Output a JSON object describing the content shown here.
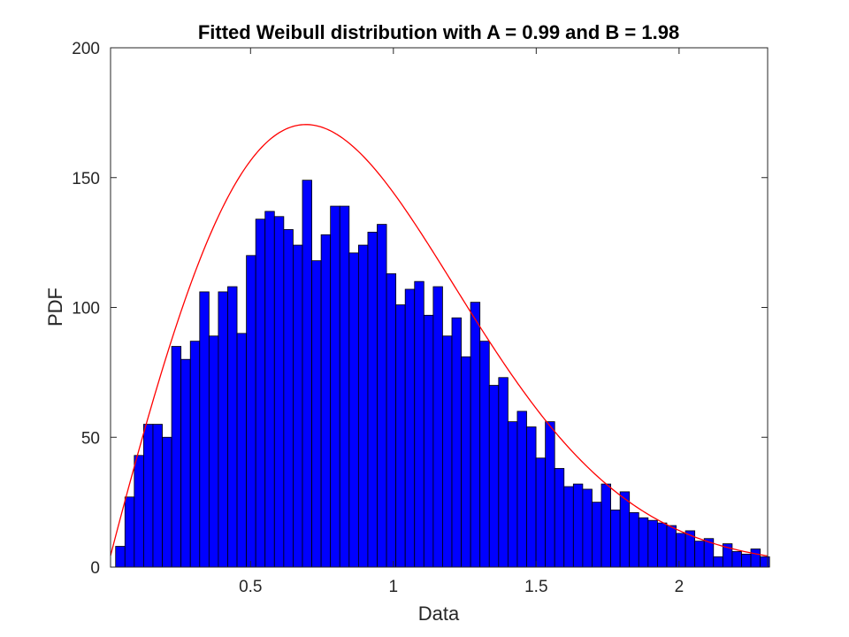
{
  "chart_data": {
    "type": "bar",
    "title": "Fitted Weibull distribution with A = 0.99 and B = 1.98",
    "xlabel": "Data",
    "ylabel": "PDF",
    "xlim": [
      0.01,
      2.31
    ],
    "ylim": [
      0,
      200
    ],
    "xticks": [
      {
        "value": 0.5,
        "label": "0.5"
      },
      {
        "value": 1,
        "label": "1"
      },
      {
        "value": 1.5,
        "label": "1.5"
      },
      {
        "value": 2,
        "label": "2"
      }
    ],
    "yticks": [
      {
        "value": 0,
        "label": "0"
      },
      {
        "value": 50,
        "label": "50"
      },
      {
        "value": 100,
        "label": "100"
      },
      {
        "value": 150,
        "label": "150"
      },
      {
        "value": 200,
        "label": "200"
      }
    ],
    "grid": false,
    "histogram": {
      "bin_start": 0.0277,
      "bin_width": 0.0327,
      "color": "#0000ff",
      "edge_color": "#000000",
      "values": [
        8,
        27,
        43,
        55,
        55,
        50,
        85,
        80,
        87,
        106,
        89,
        106,
        108,
        90,
        120,
        134,
        137,
        135,
        130,
        124,
        149,
        118,
        128,
        139,
        139,
        121,
        124,
        129,
        132,
        113,
        101,
        107,
        110,
        97,
        108,
        89,
        96,
        81,
        102,
        87,
        70,
        73,
        56,
        60,
        54,
        42,
        56,
        38,
        31,
        32,
        30,
        25,
        32,
        22,
        29,
        21,
        19,
        18,
        17,
        16,
        13,
        14,
        10,
        11,
        4,
        9,
        6,
        5,
        7,
        4
      ]
    },
    "fit_curve": {
      "name": "Weibull fit",
      "color": "#ff0000",
      "A": 0.99,
      "B": 1.98,
      "scale_factor": 198
    }
  }
}
